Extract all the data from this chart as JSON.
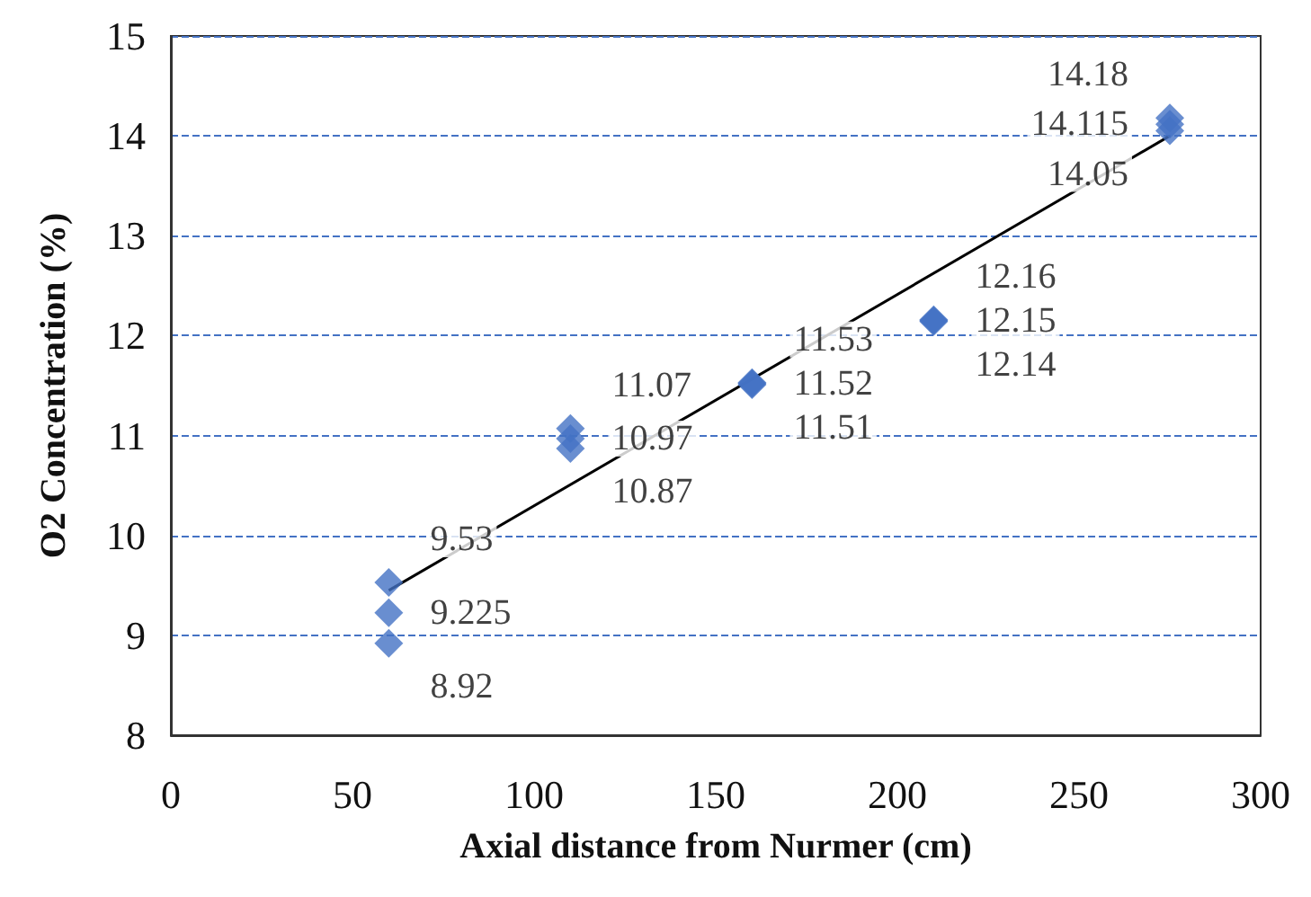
{
  "chart_data": {
    "type": "scatter",
    "xlabel": "Axial distance from Nurmer (cm)",
    "ylabel": "O2 Concentration (%)",
    "xlim": [
      0,
      300
    ],
    "xticks": [
      0,
      50,
      100,
      150,
      200,
      250,
      300
    ],
    "ylim": [
      8,
      15
    ],
    "yticks": [
      8,
      9,
      10,
      11,
      12,
      13,
      14,
      15
    ],
    "grid": "y",
    "marker": "diamond",
    "series": [
      {
        "color": "#4472c4",
        "x": [
          60,
          60,
          60,
          110,
          110,
          110,
          160,
          160,
          160,
          210,
          210,
          210,
          275,
          275,
          275
        ],
        "values": [
          9.53,
          9.225,
          8.92,
          10.97,
          10.87,
          11.07,
          11.51,
          11.53,
          11.52,
          12.16,
          12.15,
          12.14,
          14.18,
          14.115,
          14.05
        ],
        "value_labels": [
          "9.53",
          "9.225",
          "8.92",
          "10.97",
          "10.87",
          "11.07",
          "11.51",
          "11.53",
          "11.52",
          "12.16",
          "12.15",
          "12.14",
          "14.18",
          "14.115",
          "14.05"
        ]
      },
      {
        "type": "line",
        "color": "#000000",
        "x": [
          60,
          275
        ],
        "values": [
          9.45,
          14.0
        ],
        "marker": "none"
      }
    ]
  }
}
